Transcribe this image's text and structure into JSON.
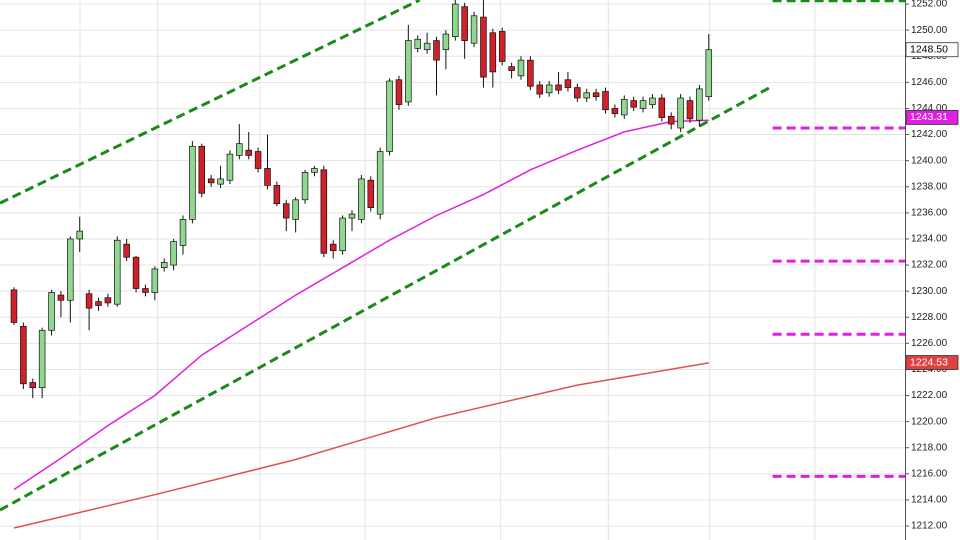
{
  "chart_data": {
    "type": "candlestick",
    "up_color": "#90d890",
    "down_color": "#d0202a",
    "open": [
      1230.1,
      1227.3,
      1223.0,
      1222.6,
      1227.0,
      1229.7,
      1229.3,
      1234.0,
      1229.8,
      1229.2,
      1229.5,
      1229.0,
      1233.6,
      1232.6,
      1230.2,
      1229.9,
      1231.8,
      1232.0,
      1233.5,
      1235.5,
      1241.1,
      1238.6,
      1238.2,
      1238.5,
      1240.4,
      1240.8,
      1240.7,
      1239.4,
      1238.1,
      1236.7,
      1235.5,
      1237.0,
      1239.1,
      1239.3,
      1233.6,
      1233.1,
      1235.6,
      1235.5,
      1238.5,
      1235.9,
      1240.7,
      1246.2,
      1244.5,
      1248.6,
      1248.5,
      1249.2,
      1248.5,
      1249.5,
      1251.8,
      1249.0,
      1251.0,
      1249.8,
      1249.9,
      1247.2,
      1246.5,
      1247.7,
      1245.8,
      1245.2,
      1245.8,
      1246.2,
      1245.6,
      1244.8,
      1245.2,
      1245.3,
      1244.0,
      1243.5,
      1244.6,
      1244.0,
      1244.3,
      1244.8,
      1243.4,
      1242.5,
      1244.6,
      1243.1,
      1244.9
    ],
    "high": [
      1230.3,
      1227.6,
      1223.3,
      1227.2,
      1230.1,
      1230.0,
      1234.2,
      1235.7,
      1230.1,
      1229.5,
      1229.8,
      1234.2,
      1234.0,
      1232.7,
      1230.5,
      1231.9,
      1232.5,
      1234.0,
      1235.8,
      1241.5,
      1241.3,
      1238.9,
      1239.6,
      1240.8,
      1242.8,
      1242.2,
      1241.0,
      1242.0,
      1238.4,
      1237.0,
      1237.2,
      1239.3,
      1239.6,
      1239.6,
      1233.9,
      1235.8,
      1236.2,
      1238.9,
      1238.8,
      1241.0,
      1246.3,
      1246.5,
      1250.4,
      1249.6,
      1249.8,
      1249.5,
      1250.0,
      1252.5,
      1252.1,
      1251.4,
      1252.3,
      1250.1,
      1250.2,
      1247.5,
      1248.0,
      1248.0,
      1246.1,
      1246.1,
      1246.8,
      1246.8,
      1245.9,
      1245.5,
      1245.5,
      1245.6,
      1244.3,
      1245.0,
      1244.9,
      1244.9,
      1245.1,
      1245.1,
      1243.7,
      1245.1,
      1244.9,
      1245.8,
      1249.7
    ],
    "low": [
      1227.4,
      1222.5,
      1221.8,
      1221.8,
      1226.6,
      1228.0,
      1227.6,
      1233.0,
      1227.0,
      1228.5,
      1228.8,
      1228.8,
      1232.3,
      1229.9,
      1229.6,
      1229.3,
      1231.5,
      1231.6,
      1232.8,
      1235.2,
      1237.2,
      1238.0,
      1237.9,
      1238.2,
      1240.1,
      1240.1,
      1239.1,
      1237.8,
      1236.5,
      1234.6,
      1234.5,
      1236.7,
      1238.8,
      1232.6,
      1232.5,
      1232.8,
      1234.6,
      1235.2,
      1236.1,
      1235.5,
      1240.4,
      1243.9,
      1244.2,
      1248.3,
      1248.2,
      1245.0,
      1247.0,
      1249.2,
      1247.8,
      1248.7,
      1245.6,
      1245.6,
      1247.3,
      1246.3,
      1246.2,
      1245.4,
      1244.8,
      1244.9,
      1245.1,
      1245.3,
      1244.5,
      1244.5,
      1244.6,
      1243.6,
      1243.3,
      1243.2,
      1243.8,
      1243.7,
      1244.0,
      1243.0,
      1242.4,
      1242.2,
      1242.9,
      1242.6,
      1244.6
    ],
    "close": [
      1227.6,
      1222.9,
      1222.6,
      1227.0,
      1229.9,
      1229.3,
      1234.0,
      1234.6,
      1228.7,
      1228.9,
      1229.1,
      1233.9,
      1232.6,
      1230.2,
      1229.9,
      1231.7,
      1232.2,
      1233.8,
      1235.5,
      1241.1,
      1237.5,
      1238.3,
      1238.6,
      1240.5,
      1241.3,
      1240.4,
      1239.4,
      1238.1,
      1236.7,
      1235.6,
      1237.0,
      1239.1,
      1239.4,
      1232.9,
      1233.1,
      1235.6,
      1235.9,
      1238.6,
      1236.4,
      1240.7,
      1246.1,
      1244.3,
      1249.2,
      1249.3,
      1249.0,
      1247.7,
      1249.7,
      1252.0,
      1249.2,
      1251.1,
      1246.4,
      1246.8,
      1247.6,
      1246.9,
      1247.7,
      1245.7,
      1245.1,
      1245.8,
      1245.4,
      1245.6,
      1244.8,
      1245.2,
      1244.9,
      1243.9,
      1243.6,
      1244.7,
      1244.1,
      1244.6,
      1244.8,
      1243.3,
      1242.8,
      1244.8,
      1243.2,
      1245.5,
      1248.5
    ],
    "series": [
      {
        "color": "#e020e0",
        "x": [
          0,
          5,
          10,
          15,
          20,
          25,
          30,
          35,
          40,
          45,
          50,
          55,
          60,
          65,
          70,
          74
        ],
        "values": [
          1214.8,
          1217.2,
          1219.7,
          1222.0,
          1225.1,
          1227.4,
          1229.7,
          1231.8,
          1233.9,
          1235.8,
          1237.4,
          1239.3,
          1240.8,
          1242.2,
          1243.0,
          1243.1
        ]
      },
      {
        "color": "#e05050",
        "x": [
          0,
          15,
          30,
          45,
          60,
          74
        ],
        "values": [
          1211.85,
          1214.4,
          1217.1,
          1220.3,
          1222.8,
          1224.5
        ]
      }
    ],
    "lines": [
      {
        "color": "#1a8a1a",
        "x": [
          -1.49,
          43.2
        ],
        "values": [
          1236.75,
          1252.3
        ]
      },
      {
        "color": "#1a8a1a",
        "x": [
          -1.49,
          80.8
        ],
        "values": [
          1213.23,
          1245.72
        ]
      },
      {
        "color": "#1a8a1a",
        "x": [
          80.8,
          94.9
        ],
        "values": [
          1252.25,
          1252.25
        ]
      },
      {
        "color": "#e020e0",
        "x": [
          80.8,
          94.9
        ],
        "values": [
          1242.5,
          1242.5
        ]
      },
      {
        "color": "#e020e0",
        "x": [
          80.8,
          94.9
        ],
        "values": [
          1232.3,
          1232.3
        ]
      },
      {
        "color": "#e020e0",
        "x": [
          80.8,
          94.9
        ],
        "values": [
          1226.7,
          1226.7
        ]
      },
      {
        "color": "#e020e0",
        "x": [
          80.8,
          94.9
        ],
        "values": [
          1215.8,
          1215.8
        ]
      }
    ],
    "price_labels": [
      {
        "value": 1248.5,
        "label": "1248.50",
        "color": "#ffffff",
        "text_color": "#000000"
      },
      {
        "value": 1243.31,
        "label": "1243.31",
        "color": "#e020e0",
        "text_color": "#ffffff"
      },
      {
        "value": 1224.53,
        "label": "1224.53",
        "color": "#e04040",
        "text_color": "#ffffff"
      }
    ],
    "xlim": [
      -1.49,
      94.9
    ],
    "xticks": [
      7.03,
      15.3,
      26.2,
      37.4,
      51.8,
      63.3,
      74.1,
      85.3
    ],
    "ylim": [
      1210.93,
      1252.31
    ],
    "yticks": [
      {
        "value": 1212,
        "label": "1212.00"
      },
      {
        "value": 1214,
        "label": "1214.00"
      },
      {
        "value": 1216,
        "label": "1216.00"
      },
      {
        "value": 1218,
        "label": "1218.00"
      },
      {
        "value": 1220,
        "label": "1220.00"
      },
      {
        "value": 1222,
        "label": "1222.00"
      },
      {
        "value": 1224,
        "label": "1224.00"
      },
      {
        "value": 1226,
        "label": "1226.00"
      },
      {
        "value": 1228,
        "label": "1228.00"
      },
      {
        "value": 1230,
        "label": "1230.00"
      },
      {
        "value": 1232,
        "label": "1232.00"
      },
      {
        "value": 1234,
        "label": "1234.00"
      },
      {
        "value": 1236,
        "label": "1236.00"
      },
      {
        "value": 1238,
        "label": "1238.00"
      },
      {
        "value": 1240,
        "label": "1240.00"
      },
      {
        "value": 1242,
        "label": "1242.00"
      },
      {
        "value": 1244,
        "label": "1244.00"
      },
      {
        "value": 1246,
        "label": "1246.00"
      },
      {
        "value": 1248,
        "label": "1248.00"
      },
      {
        "value": 1250,
        "label": "1250.00"
      },
      {
        "value": 1252,
        "label": "1252.00"
      }
    ],
    "grid": true
  }
}
